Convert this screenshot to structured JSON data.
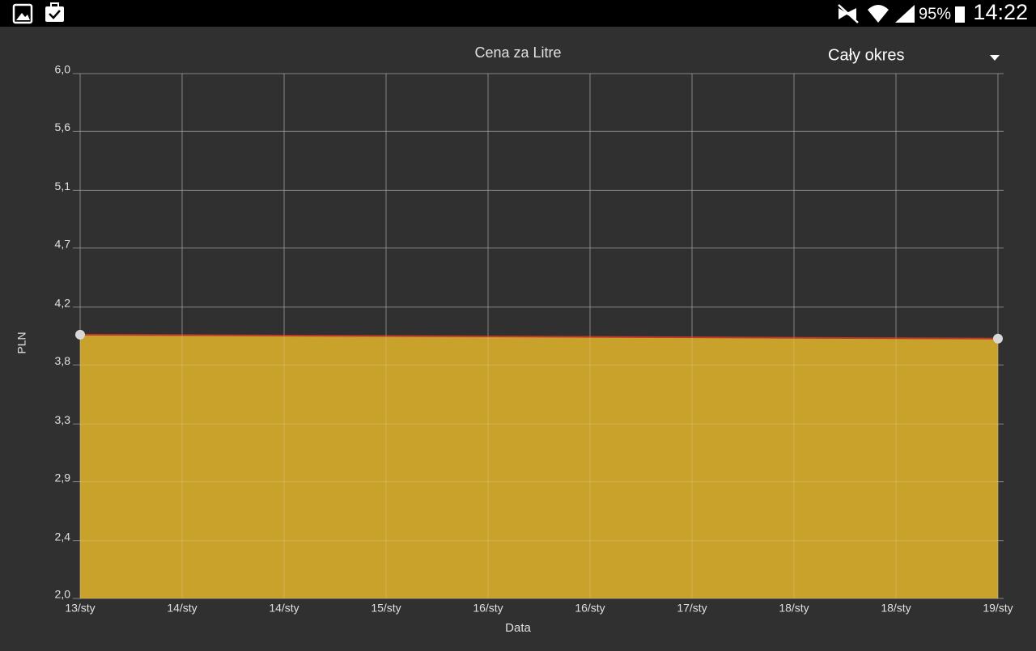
{
  "status_bar": {
    "battery": "95%",
    "time": "14:22"
  },
  "period_selector": {
    "label": "Cały okres"
  },
  "chart_data": {
    "type": "area",
    "title": "Cena za Litre",
    "x_label": "Data",
    "y_label": "PLN",
    "x": [
      0,
      9
    ],
    "values": [
      4.01,
      3.98
    ],
    "color": "#c9a22b",
    "line_color": "#c0392b",
    "marker_color": "#d8d8d8",
    "xlim": [
      0,
      9
    ],
    "xticks": [
      {
        "value": 0,
        "label": "13/sty"
      },
      {
        "value": 1,
        "label": "14/sty"
      },
      {
        "value": 2,
        "label": "14/sty"
      },
      {
        "value": 3,
        "label": "15/sty"
      },
      {
        "value": 4,
        "label": "16/sty"
      },
      {
        "value": 5,
        "label": "16/sty"
      },
      {
        "value": 6,
        "label": "17/sty"
      },
      {
        "value": 7,
        "label": "18/sty"
      },
      {
        "value": 8,
        "label": "18/sty"
      },
      {
        "value": 9,
        "label": "19/sty"
      }
    ],
    "ylim": [
      2.0,
      6.0
    ],
    "yticks": [
      {
        "value": 2.0,
        "label": "2,0"
      },
      {
        "value": 2.44,
        "label": "2,4"
      },
      {
        "value": 2.89,
        "label": "2,9"
      },
      {
        "value": 3.33,
        "label": "3,3"
      },
      {
        "value": 3.78,
        "label": "3,8"
      },
      {
        "value": 4.22,
        "label": "4,2"
      },
      {
        "value": 4.67,
        "label": "4,7"
      },
      {
        "value": 5.11,
        "label": "5,1"
      },
      {
        "value": 5.56,
        "label": "5,6"
      },
      {
        "value": 6.0,
        "label": "6,0"
      }
    ],
    "grid": true
  }
}
